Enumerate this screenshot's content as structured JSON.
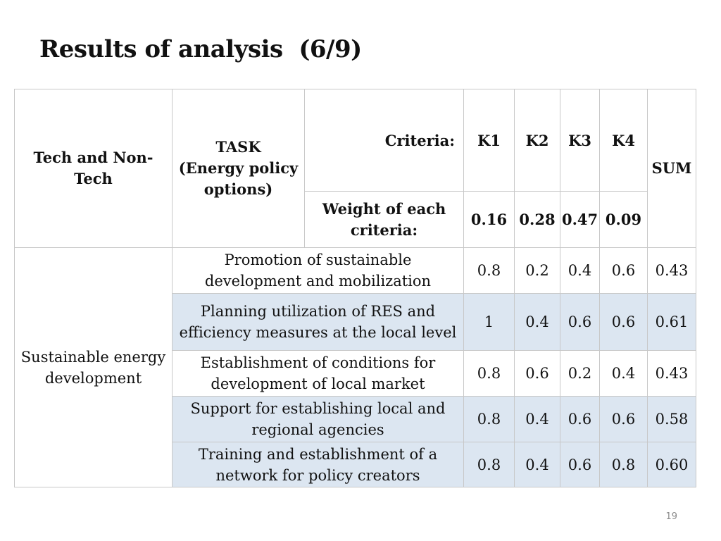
{
  "title": "Results of analysis  (6/9)",
  "table": {
    "header": {
      "col1": "Tech and Non-Tech",
      "task_line1": "TASK",
      "task_line2": "(Energy policy options)",
      "criteria_label": "Criteria:",
      "weight_label": "Weight of each criteria:",
      "k_labels": [
        "K1",
        "K2",
        "K3",
        "K4"
      ],
      "weights": [
        "0.16",
        "0.28",
        "0.47",
        "0.09"
      ],
      "sum_label": "SUM"
    },
    "group_label": "Sustainable energy development",
    "rows": [
      {
        "task": "Promotion of sustainable development and mobilization",
        "k1": "0.8",
        "k2": "0.2",
        "k3": "0.4",
        "k4": "0.6",
        "sum": "0.43"
      },
      {
        "task": "Planning utilization of RES and efficiency measures at the local level",
        "k1": "1",
        "k2": "0.4",
        "k3": "0.6",
        "k4": "0.6",
        "sum": "0.61"
      },
      {
        "task": "Establishment of conditions for development of local market",
        "k1": "0.8",
        "k2": "0.6",
        "k3": "0.2",
        "k4": "0.4",
        "sum": "0.43"
      },
      {
        "task": "Support for establishing local and regional agencies",
        "k1": "0.8",
        "k2": "0.4",
        "k3": "0.6",
        "k4": "0.6",
        "sum": "0.58"
      },
      {
        "task": "Training and establishment of a network for policy creators",
        "k1": "0.8",
        "k2": "0.4",
        "k3": "0.6",
        "k4": "0.8",
        "sum": "0.60"
      }
    ]
  },
  "page_number": "19",
  "colors": {
    "row_shade": "#dce6f1",
    "border": "#c8c8c8"
  }
}
